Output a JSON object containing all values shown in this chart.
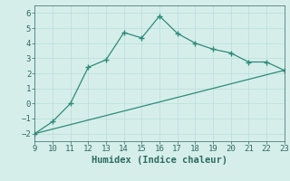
{
  "xlabel": "Humidex (Indice chaleur)",
  "ylabel": "",
  "background_color": "#d6eeea",
  "plot_bg_color": "#d6eeea",
  "line_color": "#2d8b7a",
  "marker": "+",
  "xlim": [
    9,
    23
  ],
  "ylim": [
    -2.5,
    6.5
  ],
  "xticks": [
    9,
    10,
    11,
    12,
    13,
    14,
    15,
    16,
    17,
    18,
    19,
    20,
    21,
    22,
    23
  ],
  "yticks": [
    -2,
    -1,
    0,
    1,
    2,
    3,
    4,
    5,
    6
  ],
  "curve1_x": [
    9,
    10,
    11,
    12,
    13,
    14,
    15,
    16,
    17,
    18,
    19,
    20,
    21,
    22,
    23
  ],
  "curve1_y": [
    -2.0,
    -1.2,
    0.0,
    2.4,
    2.9,
    4.7,
    4.35,
    5.8,
    4.65,
    4.0,
    3.6,
    3.35,
    2.75,
    2.75,
    2.2
  ],
  "curve2_x": [
    9,
    23
  ],
  "curve2_y": [
    -2.0,
    2.2
  ],
  "font_color": "#2d6b60",
  "grid_color": "#b8ddd8",
  "tick_fontsize": 6.5,
  "label_fontsize": 7.5
}
